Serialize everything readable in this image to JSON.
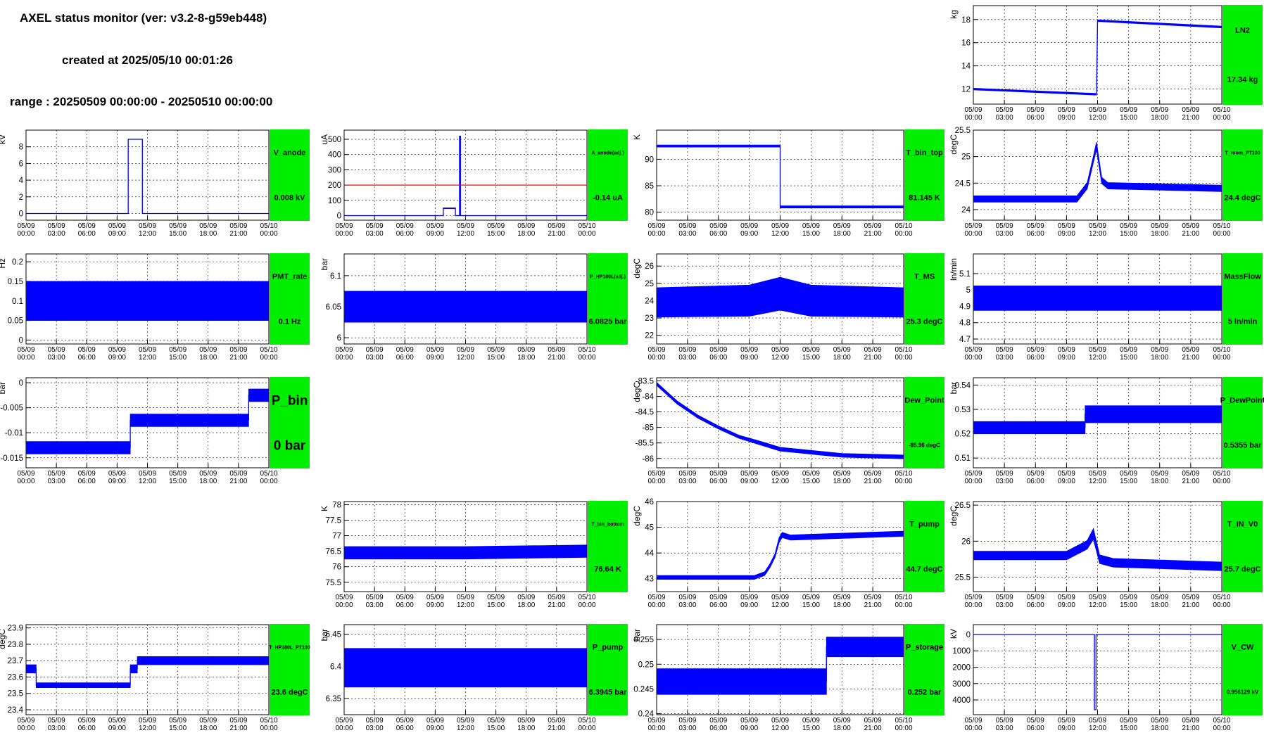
{
  "header": {
    "title": "AXEL status monitor (ver: v3.2-8-g59eb448)",
    "created": "created at 2025/05/10 00:01:26",
    "range": "range : 20250509 00:00:00 - 20250510 00:00:00"
  },
  "x_ticks": [
    {
      "d": "05/09",
      "t": "00:00"
    },
    {
      "d": "05/09",
      "t": "03:00"
    },
    {
      "d": "05/09",
      "t": "06:00"
    },
    {
      "d": "05/09",
      "t": "09:00"
    },
    {
      "d": "05/09",
      "t": "12:00"
    },
    {
      "d": "05/09",
      "t": "15:00"
    },
    {
      "d": "05/09",
      "t": "18:00"
    },
    {
      "d": "05/09",
      "t": "21:00"
    },
    {
      "d": "05/10",
      "t": "00:00"
    }
  ],
  "colors": {
    "trace": "#0000ff",
    "threshold": "#ff0000",
    "status_ok": "#00ee00"
  },
  "chart_data": [
    {
      "id": "LN2",
      "type": "line",
      "ylabel": "kg",
      "status_label": "LN2",
      "value_text": "17.34 kg",
      "ylim": [
        10.7,
        19.2
      ],
      "yticks": [
        "12",
        "14",
        "16",
        "18"
      ],
      "ytick_vals": [
        12,
        14,
        16,
        18
      ],
      "x": [
        0,
        11.9,
        12.0,
        24
      ],
      "y": [
        12.0,
        11.55,
        17.9,
        17.35
      ],
      "band": [
        0.15,
        0.15,
        0.15,
        0.15
      ]
    },
    {
      "id": "V_anode",
      "type": "line",
      "ylabel": "kV",
      "status_label": "V_anode",
      "value_text": "0.008 kV",
      "ylim": [
        -0.8,
        10
      ],
      "yticks": [
        "0",
        "2",
        "4",
        "6",
        "8"
      ],
      "ytick_vals": [
        0,
        2,
        4,
        6,
        8
      ],
      "x": [
        0,
        10.1,
        10.1,
        11.5,
        11.5,
        24
      ],
      "y": [
        0,
        0,
        8.9,
        8.9,
        0,
        0
      ],
      "band": [
        0,
        0,
        0,
        0,
        0,
        0
      ]
    },
    {
      "id": "A_anode(adj.)",
      "type": "line",
      "ylabel": "uA",
      "status_label": "A_anode(adj.)",
      "value_text": "-0.14 uA",
      "ylim": [
        -30,
        560
      ],
      "yticks": [
        "0",
        "100",
        "200",
        "300",
        "400",
        "500"
      ],
      "ytick_vals": [
        0,
        100,
        200,
        300,
        400,
        500
      ],
      "x": [
        0,
        9.8,
        9.8,
        11.0,
        11.0,
        11.4,
        11.4,
        11.5,
        11.5,
        24
      ],
      "y": [
        0,
        0,
        48,
        48,
        0,
        0,
        520,
        520,
        0,
        0
      ],
      "band": [
        0,
        0,
        5,
        5,
        0,
        0,
        0,
        0,
        0,
        0
      ],
      "threshold": 200
    },
    {
      "id": "T_bin_top",
      "type": "line",
      "ylabel": "K",
      "status_label": "T_bin_top",
      "value_text": "81.145 K",
      "ylim": [
        78.5,
        95.5
      ],
      "yticks": [
        "80",
        "85",
        "90"
      ],
      "ytick_vals": [
        80,
        85,
        90
      ],
      "x": [
        0,
        12.0,
        12.0,
        24
      ],
      "y": [
        92.5,
        92.5,
        81.0,
        81.0
      ],
      "band": [
        0.4,
        0.4,
        0.4,
        0.4
      ]
    },
    {
      "id": "T_room_PT100",
      "type": "line",
      "ylabel": "degC",
      "status_label": "T_room_PT100",
      "value_text": "24.4 degC",
      "ylim": [
        23.8,
        25.5
      ],
      "yticks": [
        "24",
        "24.5",
        "25",
        "25.5"
      ],
      "ytick_vals": [
        24,
        24.5,
        25,
        25.5
      ],
      "x": [
        0,
        10.0,
        11.0,
        11.6,
        11.9,
        12.4,
        13.0,
        24
      ],
      "y": [
        24.2,
        24.2,
        24.45,
        24.95,
        25.2,
        24.55,
        24.45,
        24.4
      ],
      "band": [
        0.12,
        0.12,
        0.12,
        0.12,
        0.15,
        0.12,
        0.12,
        0.12
      ]
    },
    {
      "id": "PMT_rate",
      "type": "line",
      "ylabel": "Hz",
      "status_label": "PMT_rate",
      "value_text": "0.1 Hz",
      "ylim": [
        -0.01,
        0.22
      ],
      "yticks": [
        "0",
        "0.05",
        "0.1",
        "0.15",
        "0.2"
      ],
      "ytick_vals": [
        0,
        0.05,
        0.1,
        0.15,
        0.2
      ],
      "x": [
        0,
        24
      ],
      "y": [
        0.1,
        0.1
      ],
      "band": [
        0.1,
        0.1
      ]
    },
    {
      "id": "P_HP180L(adj.)",
      "type": "line",
      "ylabel": "bar",
      "status_label": "P_HP180L(adj.)",
      "value_text": "6.0825 bar",
      "ylim": [
        5.99,
        6.135
      ],
      "yticks": [
        "6",
        "6.05",
        "6.1"
      ],
      "ytick_vals": [
        6,
        6.05,
        6.1
      ],
      "x": [
        0,
        24
      ],
      "y": [
        6.05,
        6.05
      ],
      "band": [
        0.05,
        0.05
      ]
    },
    {
      "id": "T_MS",
      "type": "line",
      "ylabel": "degC",
      "status_label": "T_MS",
      "value_text": "25.3 degC",
      "ylim": [
        21.5,
        26.7
      ],
      "yticks": [
        "22",
        "23",
        "24",
        "25",
        "26"
      ],
      "ytick_vals": [
        22,
        23,
        24,
        25,
        26
      ],
      "x": [
        0,
        9.0,
        12.0,
        15.0,
        24
      ],
      "y": [
        23.9,
        24.0,
        24.4,
        24.0,
        23.9
      ],
      "band": [
        1.7,
        1.8,
        1.9,
        1.8,
        1.7
      ]
    },
    {
      "id": "MassFlow",
      "type": "line",
      "ylabel": "ln/min",
      "status_label": "MassFlow",
      "value_text": "5 ln/min",
      "ylim": [
        4.67,
        5.22
      ],
      "yticks": [
        "4.7",
        "4.8",
        "4.9",
        "5",
        "5.1"
      ],
      "ytick_vals": [
        4.7,
        4.8,
        4.9,
        5,
        5.1
      ],
      "x": [
        0,
        24
      ],
      "y": [
        4.95,
        4.95
      ],
      "band": [
        0.15,
        0.15
      ]
    },
    {
      "id": "P_bin",
      "type": "line",
      "ylabel": "bar",
      "status_label": "P_bin",
      "value_text": "0 bar",
      "ylim": [
        -0.017,
        0.001
      ],
      "yticks": [
        "-0.015",
        "-0.01",
        "-0.005",
        "0"
      ],
      "ytick_vals": [
        -0.015,
        -0.01,
        -0.005,
        0
      ],
      "x": [
        0,
        10.3,
        10.3,
        22.0,
        22.0,
        24
      ],
      "y": [
        -0.013,
        -0.013,
        -0.0075,
        -0.0075,
        -0.0025,
        -0.0025
      ],
      "band": [
        0.0025,
        0.0025,
        0.0025,
        0.0025,
        0.0025,
        0.0025
      ]
    },
    {
      "id": "Dew_Point",
      "type": "line",
      "ylabel": "degC",
      "status_label": "Dew_Point",
      "value_text": "-85.96 degC",
      "ylim": [
        -86.3,
        -83.4
      ],
      "yticks": [
        "-86",
        "-85.5",
        "-85",
        "-84.5",
        "-84",
        "-83.5"
      ],
      "ytick_vals": [
        -86,
        -85.5,
        -85,
        -84.5,
        -84,
        -83.5
      ],
      "x": [
        0,
        2,
        4,
        6,
        8,
        10,
        12,
        15,
        18,
        24
      ],
      "y": [
        -83.6,
        -84.2,
        -84.65,
        -85.0,
        -85.3,
        -85.5,
        -85.7,
        -85.8,
        -85.9,
        -85.95
      ],
      "band": [
        0.1,
        0.1,
        0.1,
        0.1,
        0.1,
        0.12,
        0.12,
        0.12,
        0.12,
        0.12
      ]
    },
    {
      "id": "P_DewPoint",
      "type": "line",
      "ylabel": "bar",
      "status_label": "P_DewPoint",
      "value_text": "0.5355 bar",
      "ylim": [
        0.506,
        0.543
      ],
      "yticks": [
        "0.51",
        "0.52",
        "0.53",
        "0.54"
      ],
      "ytick_vals": [
        0.51,
        0.52,
        0.53,
        0.54
      ],
      "x": [
        0,
        10.8,
        10.8,
        24
      ],
      "y": [
        0.5225,
        0.5225,
        0.528,
        0.528
      ],
      "band": [
        0.005,
        0.005,
        0.007,
        0.007
      ]
    },
    {
      "id": "T_bin_bottom",
      "type": "line",
      "ylabel": "K",
      "status_label": "T_bin_bottom",
      "value_text": "76.64 K",
      "ylim": [
        75.2,
        78.1
      ],
      "yticks": [
        "75.5",
        "76",
        "76.5",
        "77",
        "77.5",
        "78"
      ],
      "ytick_vals": [
        75.5,
        76,
        76.5,
        77,
        77.5,
        78
      ],
      "x": [
        0,
        12,
        24
      ],
      "y": [
        76.45,
        76.45,
        76.5
      ],
      "band": [
        0.4,
        0.4,
        0.4
      ]
    },
    {
      "id": "T_pump",
      "type": "line",
      "ylabel": "degC",
      "status_label": "T_pump",
      "value_text": "44.7 degC",
      "ylim": [
        42.5,
        46.0
      ],
      "yticks": [
        "43",
        "44",
        "45",
        "46"
      ],
      "ytick_vals": [
        43,
        44,
        45,
        46
      ],
      "x": [
        0,
        9.5,
        10.5,
        11.0,
        11.5,
        11.9,
        12.2,
        13.0,
        24
      ],
      "y": [
        43.05,
        43.05,
        43.2,
        43.5,
        43.9,
        44.5,
        44.7,
        44.6,
        44.75
      ],
      "band": [
        0.15,
        0.15,
        0.15,
        0.15,
        0.15,
        0.2,
        0.2,
        0.2,
        0.2
      ]
    },
    {
      "id": "T_IN_V0",
      "type": "line",
      "ylabel": "degC",
      "status_label": "T_IN_V0",
      "value_text": "25.7 degC",
      "ylim": [
        25.3,
        26.55
      ],
      "yticks": [
        "25.5",
        "26",
        "26.5"
      ],
      "ytick_vals": [
        25.5,
        26,
        26.5
      ],
      "x": [
        0,
        9.0,
        11.0,
        11.6,
        12.2,
        13.5,
        24
      ],
      "y": [
        25.8,
        25.8,
        25.95,
        26.1,
        25.75,
        25.7,
        25.65
      ],
      "band": [
        0.12,
        0.12,
        0.12,
        0.15,
        0.12,
        0.12,
        0.12
      ]
    },
    {
      "id": "T_HP180L_PT100",
      "type": "line",
      "ylabel": "degC",
      "status_label": "T_HP180L_PT100",
      "value_text": "23.6 degC",
      "ylim": [
        23.37,
        23.92
      ],
      "yticks": [
        "23.4",
        "23.5",
        "23.6",
        "23.7",
        "23.8",
        "23.9"
      ],
      "ytick_vals": [
        23.4,
        23.5,
        23.6,
        23.7,
        23.8,
        23.9
      ],
      "x": [
        0,
        1.0,
        1.0,
        10.3,
        10.3,
        11.0,
        11.0,
        24
      ],
      "y": [
        23.65,
        23.65,
        23.55,
        23.55,
        23.65,
        23.65,
        23.7,
        23.7
      ],
      "band": [
        0.05,
        0.05,
        0.03,
        0.03,
        0.05,
        0.05,
        0.05,
        0.05
      ]
    },
    {
      "id": "P_pump",
      "type": "line",
      "ylabel": "bar",
      "status_label": "P_pump",
      "value_text": "6.3945 bar",
      "ylim": [
        6.325,
        6.465
      ],
      "yticks": [
        "6.35",
        "6.4",
        "6.45"
      ],
      "ytick_vals": [
        6.35,
        6.4,
        6.45
      ],
      "x": [
        0,
        24
      ],
      "y": [
        6.398,
        6.398
      ],
      "band": [
        0.06,
        0.06
      ]
    },
    {
      "id": "P_storage",
      "type": "line",
      "ylabel": "bar",
      "status_label": "P_storage",
      "value_text": "0.252 bar",
      "ylim": [
        0.2398,
        0.258
      ],
      "yticks": [
        "0.24",
        "0.245",
        "0.25",
        "0.255"
      ],
      "ytick_vals": [
        0.24,
        0.245,
        0.25,
        0.255
      ],
      "x": [
        0,
        16.5,
        16.5,
        24
      ],
      "y": [
        0.2465,
        0.2465,
        0.2535,
        0.2535
      ],
      "band": [
        0.0052,
        0.0052,
        0.004,
        0.004
      ]
    },
    {
      "id": "V_CW",
      "type": "line",
      "ylabel": "kV",
      "status_label": "V_CW",
      "value_text": "0.956129 kV",
      "ylim": [
        -600,
        4900
      ],
      "reversed": true,
      "yticks": [
        "0",
        "1000",
        "2000",
        "3000",
        "4000"
      ],
      "ytick_vals": [
        0,
        1000,
        2000,
        3000,
        4000
      ],
      "x": [
        0,
        11.7,
        11.7,
        11.85,
        11.85,
        24
      ],
      "y": [
        0,
        0,
        4600,
        4600,
        0,
        0
      ],
      "band": [
        0,
        0,
        0,
        0,
        0,
        0
      ]
    }
  ]
}
